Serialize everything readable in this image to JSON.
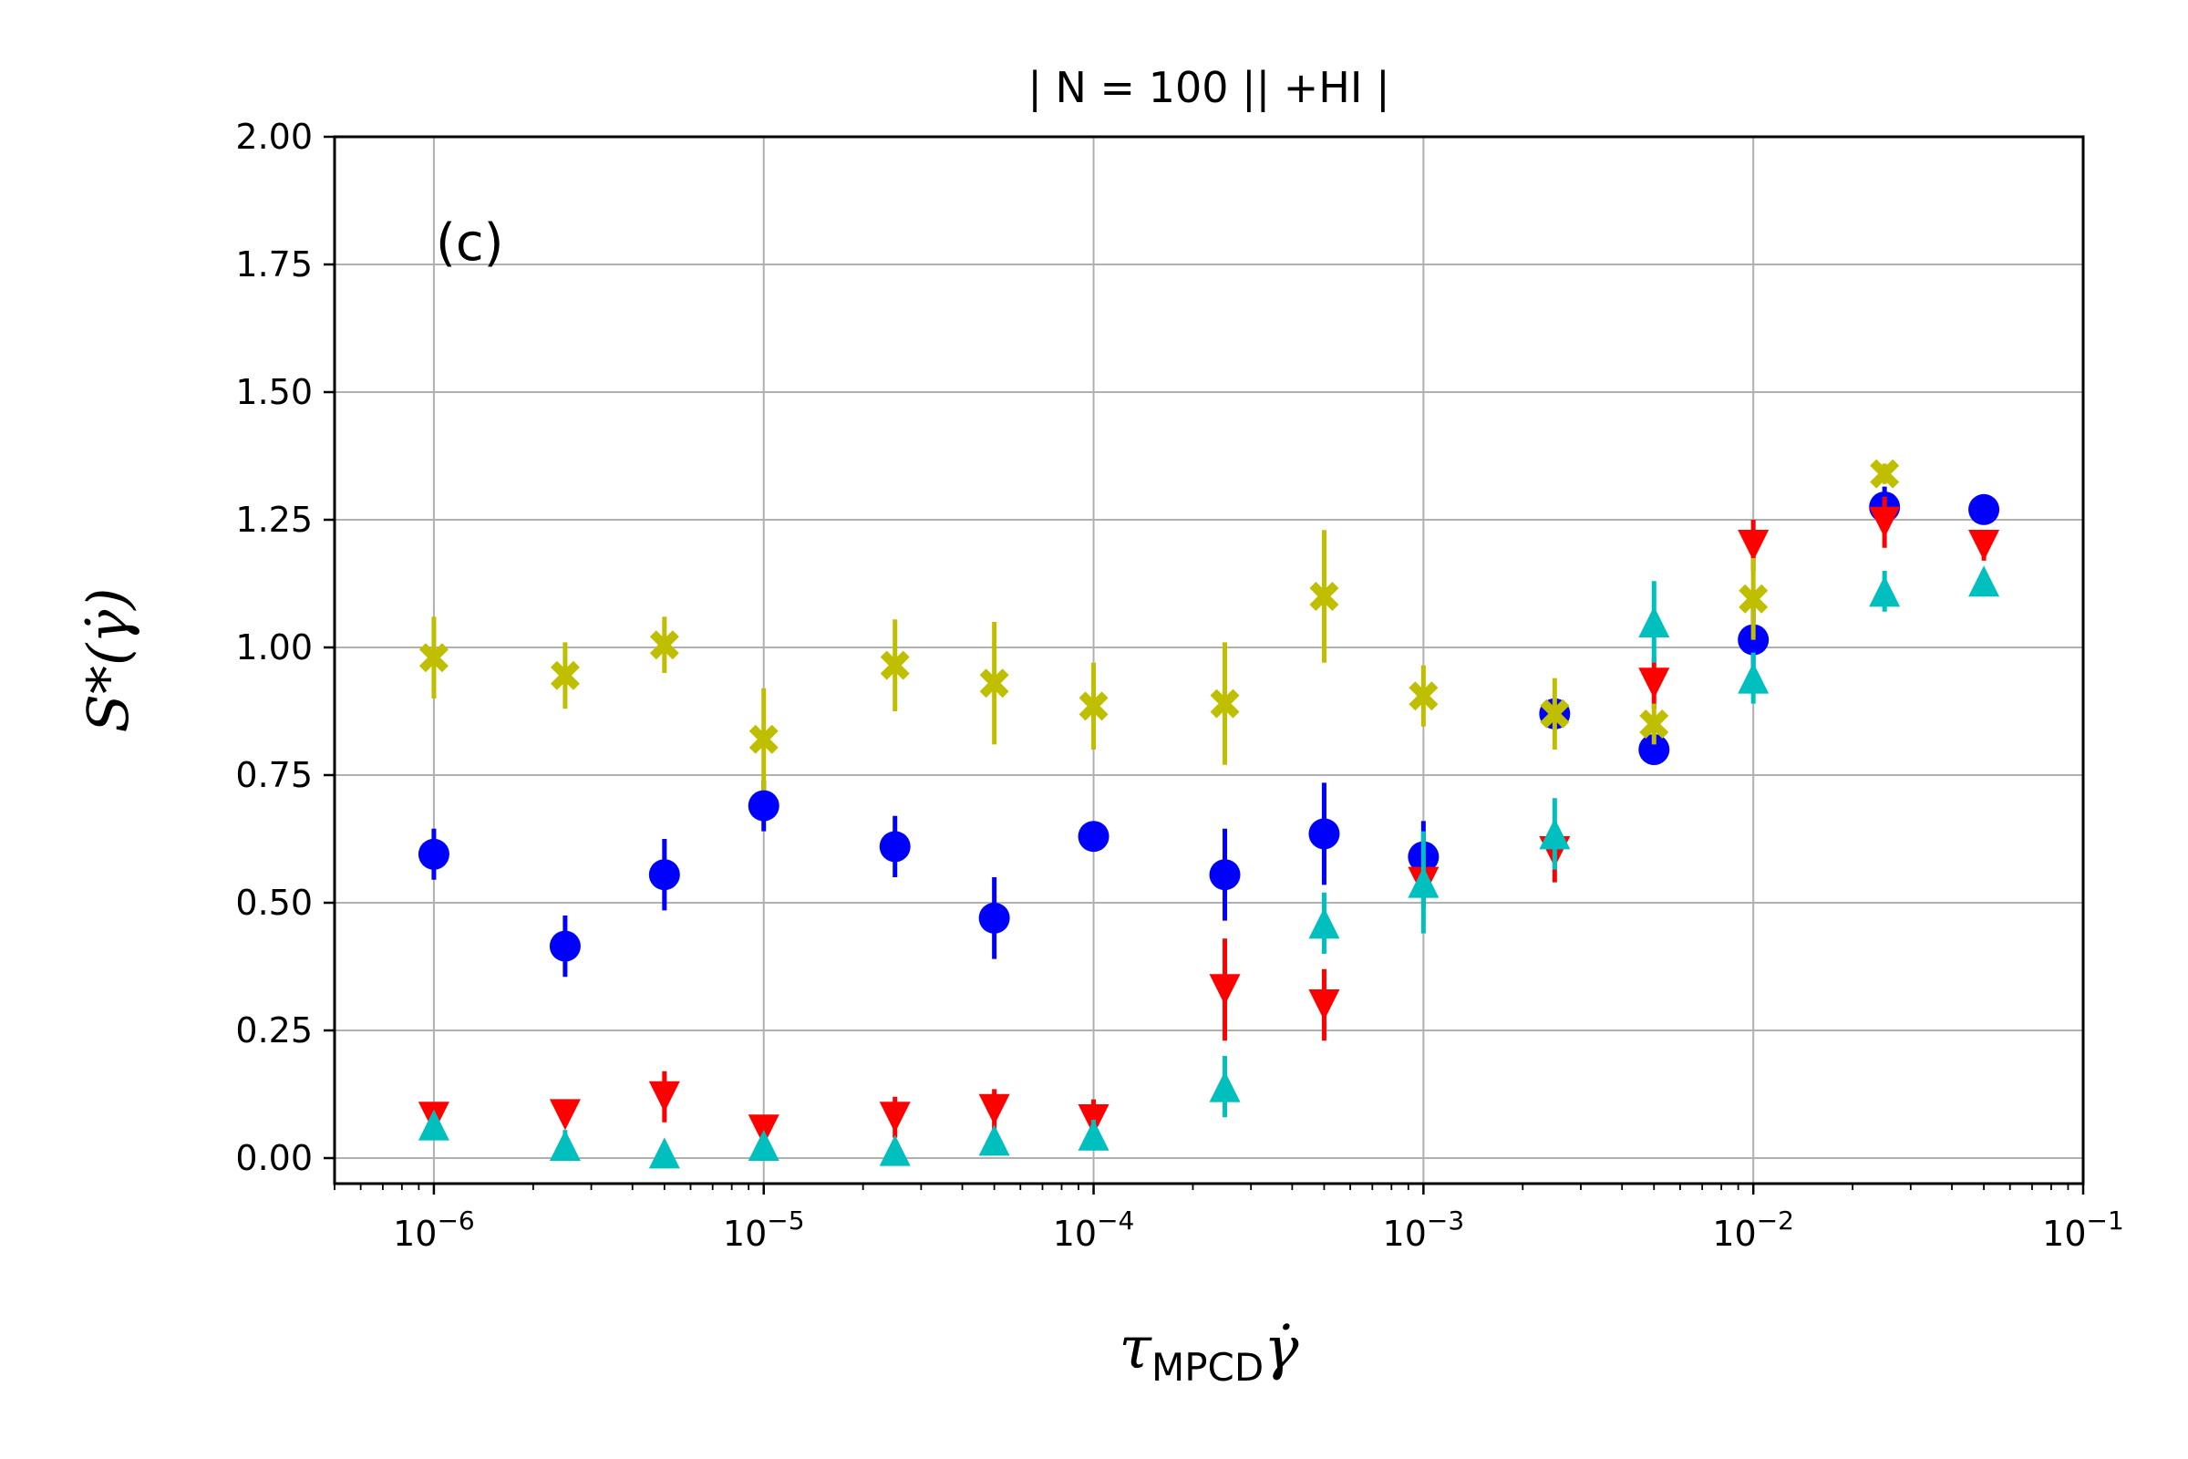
{
  "chart_data": {
    "type": "scatter",
    "title": "| N = 100 || +HI  |",
    "annotation": "(c)",
    "xlabel": "τ_MPCD γ̇",
    "xlabel_main": "τ",
    "xlabel_sub": "MPCD",
    "xlabel_dot": "γ̇",
    "ylabel": "S*(γ̇)",
    "xscale": "log",
    "xlim": [
      5e-07,
      0.1
    ],
    "ylim": [
      -0.05,
      2.0
    ],
    "grid": true,
    "x_ticks": [
      {
        "value": 1e-06,
        "base": "10",
        "exp": "−6"
      },
      {
        "value": 1e-05,
        "base": "10",
        "exp": "−5"
      },
      {
        "value": 0.0001,
        "base": "10",
        "exp": "−4"
      },
      {
        "value": 0.001,
        "base": "10",
        "exp": "−3"
      },
      {
        "value": 0.01,
        "base": "10",
        "exp": "−2"
      },
      {
        "value": 0.1,
        "base": "10",
        "exp": "−1"
      }
    ],
    "y_ticks": [
      {
        "value": 0.0,
        "label": "0.00"
      },
      {
        "value": 0.25,
        "label": "0.25"
      },
      {
        "value": 0.5,
        "label": "0.50"
      },
      {
        "value": 0.75,
        "label": "0.75"
      },
      {
        "value": 1.0,
        "label": "1.00"
      },
      {
        "value": 1.25,
        "label": "1.25"
      },
      {
        "value": 1.5,
        "label": "1.50"
      },
      {
        "value": 1.75,
        "label": "1.75"
      },
      {
        "value": 2.0,
        "label": "2.00"
      }
    ],
    "x": [
      1e-06,
      2.5e-06,
      5e-06,
      1e-05,
      2.5e-05,
      5e-05,
      0.0001,
      0.00025,
      0.0005,
      0.001,
      0.0025,
      0.005,
      0.01,
      0.025,
      0.05
    ],
    "series": [
      {
        "name": "blue circles",
        "marker": "circle",
        "color": "#0000ff",
        "values": [
          0.595,
          0.415,
          0.555,
          0.69,
          0.61,
          0.47,
          0.63,
          0.555,
          0.635,
          0.59,
          0.87,
          0.8,
          1.015,
          1.275,
          1.27
        ],
        "errors": [
          0.05,
          0.06,
          0.07,
          0.05,
          0.06,
          0.08,
          0.02,
          0.09,
          0.1,
          0.07,
          0.03,
          0.03,
          0.07,
          0.04,
          0.03
        ]
      },
      {
        "name": "red down-triangles",
        "marker": "triangle-down",
        "color": "#ff0000",
        "values": [
          0.08,
          0.085,
          0.12,
          0.055,
          0.08,
          0.095,
          0.075,
          0.33,
          0.3,
          0.54,
          0.6,
          0.93,
          1.2,
          1.245,
          1.2
        ],
        "errors": [
          0.02,
          0.02,
          0.05,
          0.02,
          0.04,
          0.04,
          0.04,
          0.1,
          0.07,
          0.05,
          0.06,
          0.05,
          0.05,
          0.05,
          0.03
        ]
      },
      {
        "name": "cyan up-triangles",
        "marker": "triangle-up",
        "color": "#00bfbf",
        "values": [
          0.065,
          0.025,
          0.01,
          0.025,
          0.015,
          0.035,
          0.045,
          0.14,
          0.46,
          0.54,
          0.635,
          1.05,
          0.94,
          1.11,
          1.13
        ],
        "errors": [
          0.02,
          0.03,
          0.02,
          0.02,
          0.02,
          0.02,
          0.03,
          0.06,
          0.06,
          0.1,
          0.07,
          0.08,
          0.05,
          0.04,
          0.02
        ]
      },
      {
        "name": "yellow crosses",
        "marker": "x-filled",
        "color": "#bfbf00",
        "values": [
          0.98,
          0.945,
          1.005,
          0.82,
          0.965,
          0.93,
          0.885,
          0.89,
          1.1,
          0.905,
          0.87,
          0.85,
          1.095,
          1.34,
          null
        ],
        "errors": [
          0.08,
          0.065,
          0.055,
          0.1,
          0.09,
          0.12,
          0.085,
          0.12,
          0.13,
          0.06,
          0.07,
          0.04,
          0.08,
          0.02,
          null
        ]
      }
    ]
  }
}
